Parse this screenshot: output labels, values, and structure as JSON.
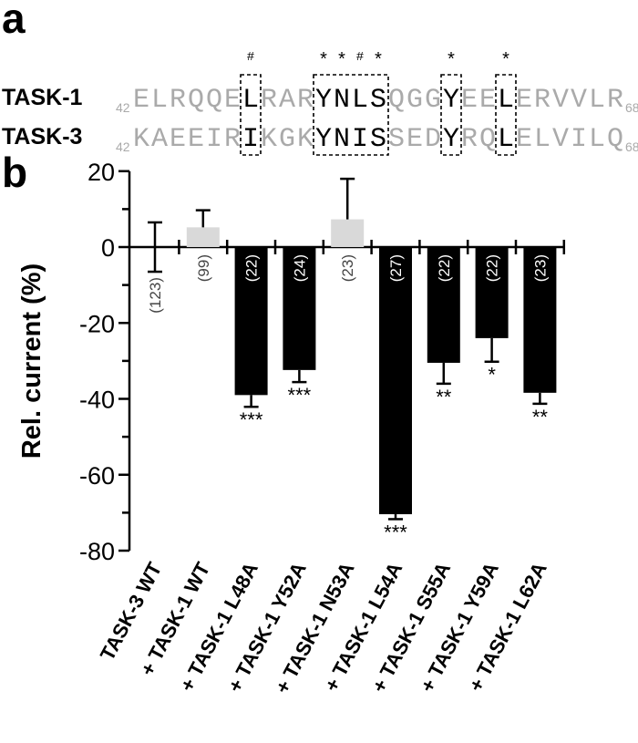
{
  "panel_a": {
    "label": "a",
    "start_index": "42",
    "end_index": "68",
    "rows": [
      {
        "name": "TASK-1",
        "sequence": "ELRQQELRARYNLSQGGYEELERVVLR"
      },
      {
        "name": "TASK-3",
        "sequence": "KAEEIRIKGKYNISSEDYRQLELVILQ"
      }
    ],
    "boxes": [
      [
        6,
        6
      ],
      [
        10,
        13
      ],
      [
        17,
        17
      ],
      [
        20,
        20
      ]
    ],
    "markers": [
      {
        "index": 6,
        "symbol": "#"
      },
      {
        "index": 10,
        "symbol": "*"
      },
      {
        "index": 11,
        "symbol": "*"
      },
      {
        "index": 12,
        "symbol": "#"
      },
      {
        "index": 13,
        "symbol": "*"
      },
      {
        "index": 17,
        "symbol": "*"
      },
      {
        "index": 20,
        "symbol": "*"
      }
    ],
    "colors": {
      "highlight": "#000000",
      "other": "#aaaaaa"
    }
  },
  "chart_data": {
    "type": "bar",
    "panel_label": "b",
    "title": "",
    "xlabel": "",
    "ylabel": "Rel. current (%)",
    "ylim": [
      -80,
      20
    ],
    "yticks": [
      20,
      0,
      -20,
      -40,
      -60,
      -80
    ],
    "grid": false,
    "categories": [
      "TASK-3 WT",
      "+ TASK-1 WT",
      "+ TASK-1 L48A",
      "+ TASK-1 Y52A",
      "+ TASK-1 N53A",
      "+ TASK-1 L54A",
      "+ TASK-1 S55A",
      "+ TASK-1 Y59A",
      "+ TASK-1 L62A"
    ],
    "values": [
      0,
      5.2,
      -39.0,
      -32.4,
      7.3,
      -70.4,
      -30.5,
      -24.0,
      -38.4
    ],
    "errors": [
      6.5,
      4.5,
      3.1,
      3.2,
      10.7,
      1.3,
      5.5,
      6.2,
      2.9
    ],
    "n": [
      "(123)",
      "(99)",
      "(22)",
      "(24)",
      "(23)",
      "(27)",
      "(22)",
      "(22)",
      "(23)"
    ],
    "significance": [
      "",
      "",
      "***",
      "***",
      "",
      "***",
      "**",
      "*",
      "**"
    ],
    "bar_colors": [
      "#000000",
      "#d9d9d9",
      "#000000",
      "#000000",
      "#d9d9d9",
      "#000000",
      "#000000",
      "#000000",
      "#000000"
    ]
  }
}
